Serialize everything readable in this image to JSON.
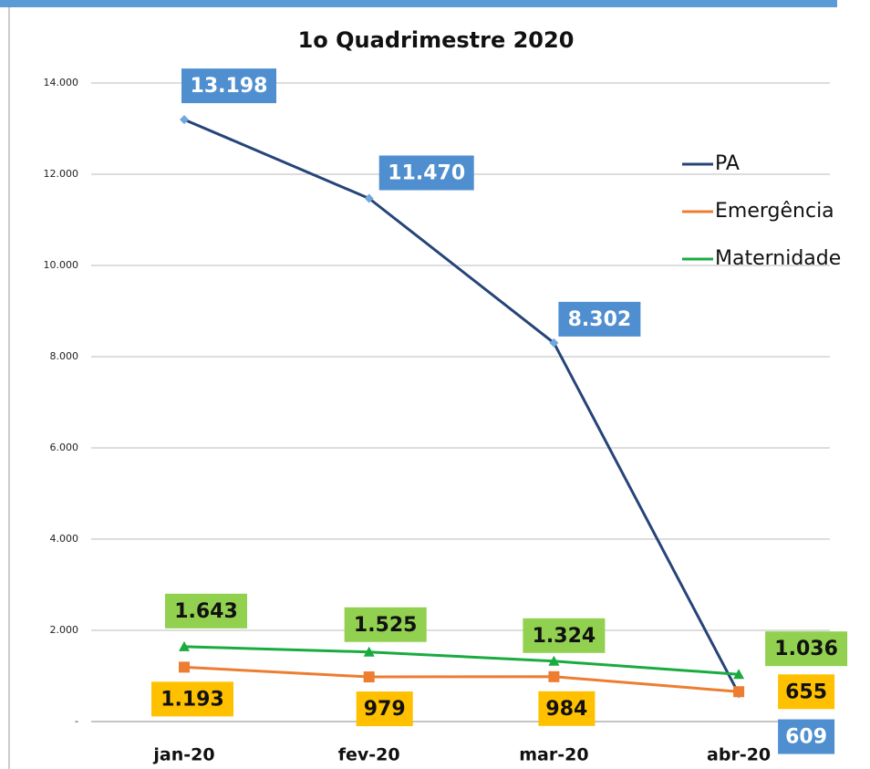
{
  "chart_data": {
    "type": "line",
    "title": "1o Quadrimestre 2020",
    "categories": [
      "jan-20",
      "fev-20",
      "mar-20",
      "abr-20"
    ],
    "series": [
      {
        "name": "PA",
        "color": "#264478",
        "values": [
          13198,
          11470,
          8302,
          609
        ],
        "value_labels": [
          "13.198",
          "11.470",
          "8.302",
          "609"
        ],
        "label_color": "#4f8fd0"
      },
      {
        "name": "Emergência",
        "color": "#ed7d31",
        "values": [
          1193,
          979,
          984,
          655
        ],
        "value_labels": [
          "1.193",
          "979",
          "984",
          "655"
        ],
        "label_color": "#ffc000"
      },
      {
        "name": "Maternidade",
        "color": "#1aab40",
        "values": [
          1643,
          1525,
          1324,
          1036
        ],
        "value_labels": [
          "1.643",
          "1.525",
          "1.324",
          "1.036"
        ],
        "label_color": "#92d050"
      }
    ],
    "ylim": [
      0,
      14000
    ],
    "yticks": [
      {
        "value": 0,
        "label": "-"
      },
      {
        "value": 2000,
        "label": "2.000"
      },
      {
        "value": 4000,
        "label": "4.000"
      },
      {
        "value": 6000,
        "label": "6.000"
      },
      {
        "value": 8000,
        "label": "8.000"
      },
      {
        "value": 10000,
        "label": "10.000"
      },
      {
        "value": 12000,
        "label": "12.000"
      },
      {
        "value": 14000,
        "label": "14.000"
      }
    ],
    "grid": true,
    "legend": "right"
  }
}
